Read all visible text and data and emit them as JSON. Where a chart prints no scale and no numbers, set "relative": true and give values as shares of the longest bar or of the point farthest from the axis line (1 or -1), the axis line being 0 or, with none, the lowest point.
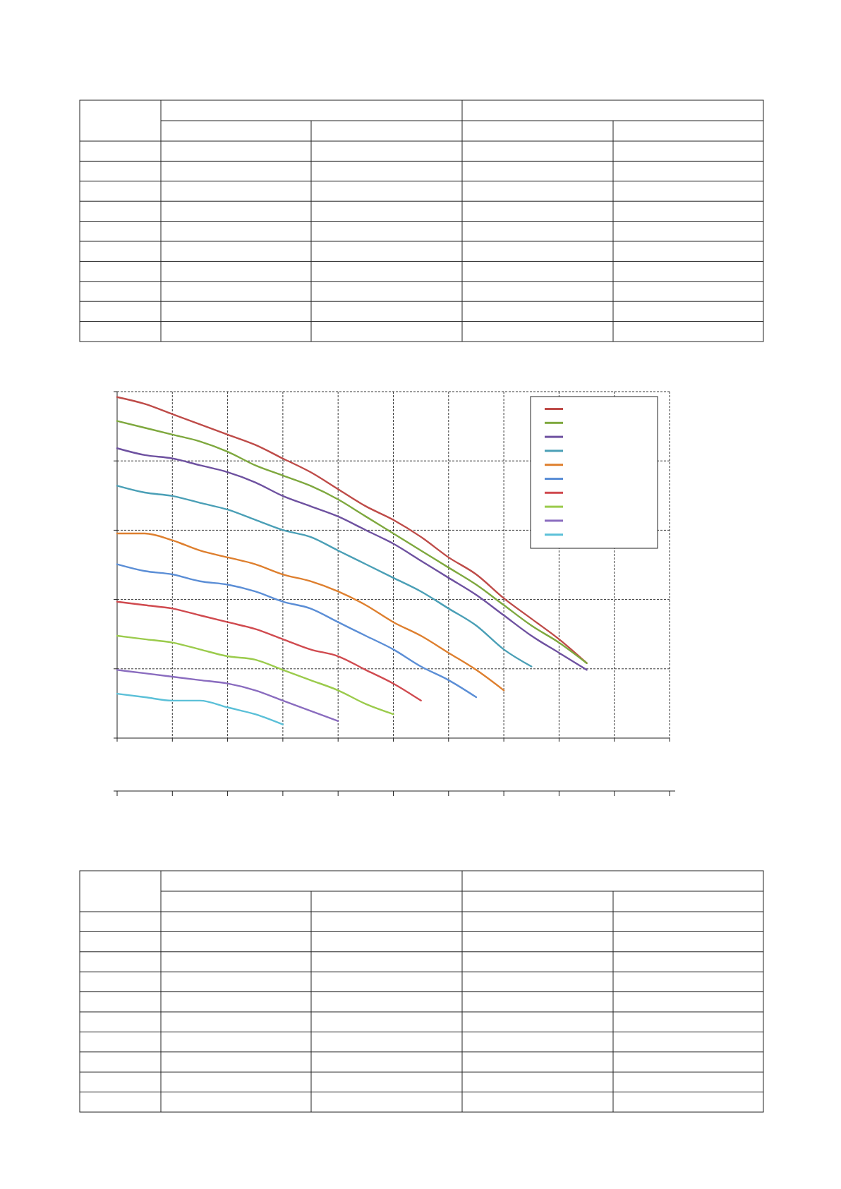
{
  "chart_data": {
    "type": "line",
    "relative": true,
    "categories": [
      null,
      null,
      null,
      null,
      null,
      null,
      null,
      null,
      null,
      null,
      null,
      null,
      null,
      null,
      null,
      null,
      null,
      null,
      null,
      null,
      null
    ],
    "grid": true,
    "series": [
      {
        "color": "#be4b48",
        "values": [
          1.0,
          0.98,
          0.95,
          0.92,
          0.89,
          0.86,
          0.82,
          0.78,
          0.73,
          0.68,
          0.64,
          0.59,
          0.53,
          0.48,
          0.41,
          0.35,
          0.29,
          0.22,
          null,
          null,
          null
        ]
      },
      {
        "color": "#7ea83e",
        "values": [
          0.93,
          0.91,
          0.89,
          0.87,
          0.84,
          0.8,
          0.77,
          0.74,
          0.7,
          0.65,
          0.6,
          0.55,
          0.5,
          0.45,
          0.39,
          0.33,
          0.28,
          0.22,
          null,
          null,
          null
        ]
      },
      {
        "color": "#6e51a0",
        "values": [
          0.85,
          0.83,
          0.82,
          0.8,
          0.78,
          0.75,
          0.71,
          0.68,
          0.65,
          0.61,
          0.57,
          0.52,
          0.47,
          0.42,
          0.36,
          0.3,
          0.25,
          0.2,
          null,
          null,
          null
        ]
      },
      {
        "color": "#4a9fb6",
        "values": [
          0.74,
          0.72,
          0.71,
          0.69,
          0.67,
          0.64,
          0.61,
          0.59,
          0.55,
          0.51,
          0.47,
          0.43,
          0.38,
          0.33,
          0.26,
          0.21,
          null,
          null,
          null,
          null,
          null
        ]
      },
      {
        "color": "#de7f2e",
        "values": [
          0.6,
          0.6,
          0.58,
          0.55,
          0.53,
          0.51,
          0.48,
          0.46,
          0.43,
          0.39,
          0.34,
          0.3,
          0.25,
          0.2,
          0.14,
          null,
          null,
          null,
          null,
          null,
          null
        ]
      },
      {
        "color": "#5b8ed6",
        "values": [
          0.51,
          0.49,
          0.48,
          0.46,
          0.45,
          0.43,
          0.4,
          0.38,
          0.34,
          0.3,
          0.26,
          0.21,
          0.17,
          0.12,
          null,
          null,
          null,
          null,
          null,
          null,
          null
        ]
      },
      {
        "color": "#d04a4f",
        "values": [
          0.4,
          0.39,
          0.38,
          0.36,
          0.34,
          0.32,
          0.29,
          0.26,
          0.24,
          0.2,
          0.16,
          0.11,
          null,
          null,
          null,
          null,
          null,
          null,
          null,
          null,
          null
        ]
      },
      {
        "color": "#9bcb4c",
        "values": [
          0.3,
          0.29,
          0.28,
          0.26,
          0.24,
          0.23,
          0.2,
          0.17,
          0.14,
          0.1,
          0.07,
          null,
          null,
          null,
          null,
          null,
          null,
          null,
          null,
          null,
          null
        ]
      },
      {
        "color": "#8a6cbf",
        "values": [
          0.2,
          0.19,
          0.18,
          0.17,
          0.16,
          0.14,
          0.11,
          0.08,
          0.05,
          null,
          null,
          null,
          null,
          null,
          null,
          null,
          null,
          null,
          null,
          null,
          null
        ]
      },
      {
        "color": "#5bc0d8",
        "values": [
          0.13,
          0.12,
          0.11,
          0.11,
          0.09,
          0.07,
          0.04,
          null,
          null,
          null,
          null,
          null,
          null,
          null,
          null,
          null,
          null,
          null,
          null,
          null,
          null
        ]
      }
    ]
  }
}
